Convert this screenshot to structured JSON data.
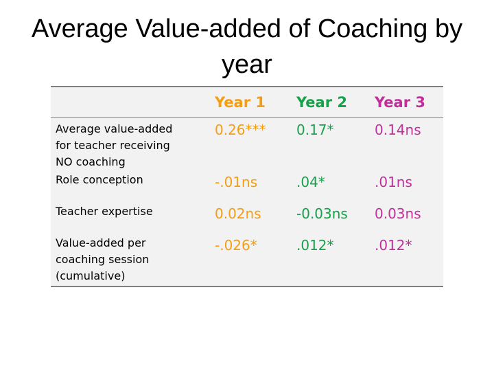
{
  "slide": {
    "title_line1": "Average Value-added of Coaching by",
    "title_line2": "year"
  },
  "table": {
    "headers": [
      "",
      "Year 1",
      "Year 2",
      "Year 3"
    ],
    "header_colors": [
      "#000000",
      "#f59d13",
      "#15a24a",
      "#c22f9b"
    ],
    "rows": [
      {
        "label_lines": [
          "Average value-added",
          "for teacher receiving",
          "NO coaching"
        ],
        "values": [
          "0.26***",
          "0.17*",
          "0.14ns"
        ]
      },
      {
        "label_lines": [
          "Role conception"
        ],
        "values": [
          "-.01ns",
          ".04*",
          ".01ns"
        ]
      },
      {
        "label_lines": [
          "Teacher expertise"
        ],
        "values": [
          "0.02ns",
          "-0.03ns",
          "0.03ns"
        ]
      },
      {
        "label_lines": [
          "Value-added per",
          "coaching session",
          "(cumulative)"
        ],
        "values": [
          "-.026*",
          ".012*",
          ".012*"
        ]
      }
    ]
  }
}
